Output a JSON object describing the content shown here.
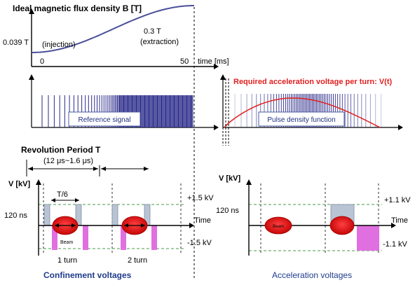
{
  "top_plot": {
    "title": "Ideal magnetic flux density B [T]",
    "start_field": "0.039 T",
    "injection": "(injection)",
    "end_field": "0.3 T",
    "extraction": "(extraction)",
    "x_zero": "0",
    "x_fifty": "50",
    "x_axis_label": "time [ms]"
  },
  "middle": {
    "reference_signal": "Reference signal",
    "voltage_title": "Required acceleration voltage per turn: V(t)",
    "pulse_density": "Pulse density function"
  },
  "revolution": {
    "label": "Revolution Period T",
    "range": "(12 μs~1.6 μs)"
  },
  "confinement": {
    "v_axis": "V [kV]",
    "t_over_6": "T/6",
    "plus_voltage": "+1.5 kV",
    "minus_voltage": "-1.5 kV",
    "time_label": "Time",
    "width_label": "120 ns",
    "beam": "Beam",
    "turn1": "1 turn",
    "turn2": "2 turn",
    "caption": "Confinement voltages"
  },
  "acceleration": {
    "v_axis": "V [kV]",
    "plus_voltage": "+1.1 kV",
    "minus_voltage": "-1.1 kV",
    "time_label": "Time",
    "width_label": "120 ns",
    "beam": "Beam",
    "caption": "Acceleration voltages"
  },
  "colors": {
    "curve": "#4a4f9a",
    "pulse": "#2a2a8a",
    "red": "#e02020",
    "caption": "#1f3c8c",
    "beam": "#e01010",
    "magenta": "#e070e0",
    "greybar": "#b8c4d4",
    "green": "#4a9a4a"
  }
}
